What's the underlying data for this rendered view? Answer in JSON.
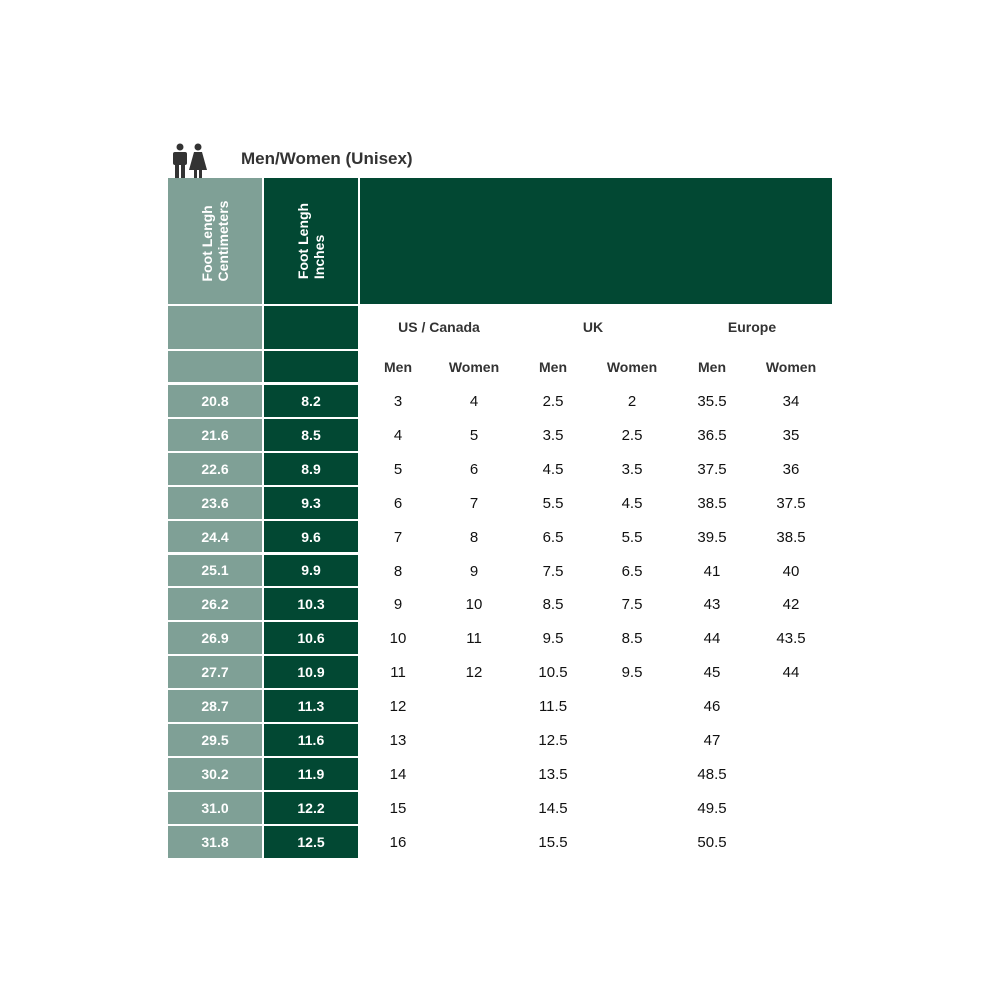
{
  "title": "Men/Women (Unisex)",
  "icon": "man-woman-icon",
  "colors": {
    "cm_column": "#7fa096",
    "inch_column": "#024833"
  },
  "headers": {
    "cm": [
      "Foot Lengh",
      "Centimeters"
    ],
    "inches": [
      "Foot Lengh",
      "Inches"
    ]
  },
  "groups": [
    "US / Canada",
    "UK",
    "Europe"
  ],
  "subheaders": [
    "Men",
    "Women",
    "Men",
    "Women",
    "Men",
    "Women"
  ],
  "rows": [
    [
      "20.8",
      "8.2",
      "3",
      "4",
      "2.5",
      "2",
      "35.5",
      "34"
    ],
    [
      "21.6",
      "8.5",
      "4",
      "5",
      "3.5",
      "2.5",
      "36.5",
      "35"
    ],
    [
      "22.6",
      "8.9",
      "5",
      "6",
      "4.5",
      "3.5",
      "37.5",
      "36"
    ],
    [
      "23.6",
      "9.3",
      "6",
      "7",
      "5.5",
      "4.5",
      "38.5",
      "37.5"
    ],
    [
      "24.4",
      "9.6",
      "7",
      "8",
      "6.5",
      "5.5",
      "39.5",
      "38.5"
    ],
    [
      "25.1",
      "9.9",
      "8",
      "9",
      "7.5",
      "6.5",
      "41",
      "40"
    ],
    [
      "26.2",
      "10.3",
      "9",
      "10",
      "8.5",
      "7.5",
      "43",
      "42"
    ],
    [
      "26.9",
      "10.6",
      "10",
      "11",
      "9.5",
      "8.5",
      "44",
      "43.5"
    ],
    [
      "27.7",
      "10.9",
      "11",
      "12",
      "10.5",
      "9.5",
      "45",
      "44"
    ],
    [
      "28.7",
      "11.3",
      "12",
      "",
      "11.5",
      "",
      "46",
      ""
    ],
    [
      "29.5",
      "11.6",
      "13",
      "",
      "12.5",
      "",
      "47",
      ""
    ],
    [
      "30.2",
      "11.9",
      "14",
      "",
      "13.5",
      "",
      "48.5",
      ""
    ],
    [
      "31.0",
      "12.2",
      "15",
      "",
      "14.5",
      "",
      "49.5",
      ""
    ],
    [
      "31.8",
      "12.5",
      "16",
      "",
      "15.5",
      "",
      "50.5",
      ""
    ]
  ]
}
